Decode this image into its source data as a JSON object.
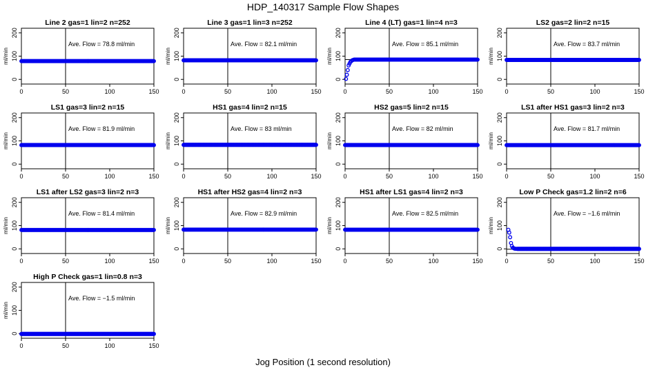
{
  "title": "HDP_140317  Sample Flow Shapes",
  "xlabel": "Jog Position (1 second resolution)",
  "colors": {
    "points": "#0000ee",
    "axis": "#000000"
  },
  "chart_data": [
    {
      "type": "scatter",
      "title": "Line 2 gas=1 lin=2 n=252",
      "ylabel": "ml/min",
      "annotation": "Ave. Flow = 78.8  ml/min",
      "xlim": [
        0,
        150
      ],
      "ylim": [
        -20,
        220
      ],
      "xticks": [
        "0",
        "50",
        "100",
        "150"
      ],
      "yticks": [
        "0",
        "100",
        "200"
      ],
      "x": [
        0,
        150
      ],
      "y": [
        78.8,
        78.8
      ],
      "hline": 78.8,
      "vline": 50
    },
    {
      "type": "scatter",
      "title": "Line 3 gas=1 lin=3 n=252",
      "ylabel": "ml/min",
      "annotation": "Ave. Flow = 82.1  ml/min",
      "xlim": [
        0,
        150
      ],
      "ylim": [
        -20,
        220
      ],
      "xticks": [
        "0",
        "50",
        "100",
        "150"
      ],
      "yticks": [
        "0",
        "100",
        "200"
      ],
      "x": [
        0,
        150
      ],
      "y": [
        82.1,
        82.1
      ],
      "hline": 82.1,
      "vline": 50
    },
    {
      "type": "scatter",
      "title": "Line 4 (LT) gas=1 lin=4 n=3",
      "ylabel": "ml/min",
      "annotation": "Ave. Flow = 85.1  ml/min",
      "xlim": [
        0,
        150
      ],
      "ylim": [
        -20,
        220
      ],
      "xticks": [
        "0",
        "50",
        "100",
        "150"
      ],
      "yticks": [
        "0",
        "100",
        "200"
      ],
      "x": [
        1,
        2,
        3,
        4,
        6,
        8,
        10,
        150
      ],
      "y": [
        2,
        20,
        40,
        60,
        75,
        82,
        85,
        85
      ],
      "hline": 85.1,
      "vline": 50
    },
    {
      "type": "scatter",
      "title": "LS2 gas=2 lin=2 n=15",
      "ylabel": "ml/min",
      "annotation": "Ave. Flow = 83.7  ml/min",
      "xlim": [
        0,
        150
      ],
      "ylim": [
        -20,
        220
      ],
      "xticks": [
        "0",
        "50",
        "100",
        "150"
      ],
      "yticks": [
        "0",
        "100",
        "200"
      ],
      "x": [
        0,
        150
      ],
      "y": [
        83.7,
        83.7
      ],
      "hline": 83.7,
      "vline": 50
    },
    {
      "type": "scatter",
      "title": "LS1 gas=3 lin=2 n=15",
      "ylabel": "ml/min",
      "annotation": "Ave. Flow = 81.9  ml/min",
      "xlim": [
        0,
        150
      ],
      "ylim": [
        -20,
        220
      ],
      "xticks": [
        "0",
        "50",
        "100",
        "150"
      ],
      "yticks": [
        "0",
        "100",
        "200"
      ],
      "x": [
        0,
        150
      ],
      "y": [
        81.9,
        81.9
      ],
      "hline": 81.9,
      "vline": 50
    },
    {
      "type": "scatter",
      "title": "HS1 gas=4 lin=2 n=15",
      "ylabel": "ml/min",
      "annotation": "Ave. Flow = 83  ml/min",
      "xlim": [
        0,
        150
      ],
      "ylim": [
        -20,
        220
      ],
      "xticks": [
        "0",
        "50",
        "100",
        "150"
      ],
      "yticks": [
        "0",
        "100",
        "200"
      ],
      "x": [
        0,
        150
      ],
      "y": [
        83,
        83
      ],
      "hline": 83,
      "vline": 50
    },
    {
      "type": "scatter",
      "title": "HS2 gas=5 lin=2 n=15",
      "ylabel": "ml/min",
      "annotation": "Ave. Flow = 82  ml/min",
      "xlim": [
        0,
        150
      ],
      "ylim": [
        -20,
        220
      ],
      "xticks": [
        "0",
        "50",
        "100",
        "150"
      ],
      "yticks": [
        "0",
        "100",
        "200"
      ],
      "x": [
        0,
        150
      ],
      "y": [
        82,
        82
      ],
      "hline": 82,
      "vline": 50
    },
    {
      "type": "scatter",
      "title": "LS1 after HS1 gas=3 lin=2 n=3",
      "ylabel": "ml/min",
      "annotation": "Ave. Flow = 81.7  ml/min",
      "xlim": [
        0,
        150
      ],
      "ylim": [
        -20,
        220
      ],
      "xticks": [
        "0",
        "50",
        "100",
        "150"
      ],
      "yticks": [
        "0",
        "100",
        "200"
      ],
      "x": [
        0,
        150
      ],
      "y": [
        81.7,
        81.7
      ],
      "hline": 81.7,
      "vline": 50
    },
    {
      "type": "scatter",
      "title": "LS1 after LS2 gas=3 lin=2 n=3",
      "ylabel": "ml/min",
      "annotation": "Ave. Flow = 81.4  ml/min",
      "xlim": [
        0,
        150
      ],
      "ylim": [
        -20,
        220
      ],
      "xticks": [
        "0",
        "50",
        "100",
        "150"
      ],
      "yticks": [
        "0",
        "100",
        "200"
      ],
      "x": [
        0,
        150
      ],
      "y": [
        81.4,
        81.4
      ],
      "hline": 81.4,
      "vline": 50
    },
    {
      "type": "scatter",
      "title": "HS1 after HS2 gas=4 lin=2 n=3",
      "ylabel": "ml/min",
      "annotation": "Ave. Flow = 82.9  ml/min",
      "xlim": [
        0,
        150
      ],
      "ylim": [
        -20,
        220
      ],
      "xticks": [
        "0",
        "50",
        "100",
        "150"
      ],
      "yticks": [
        "0",
        "100",
        "200"
      ],
      "x": [
        0,
        150
      ],
      "y": [
        82.9,
        82.9
      ],
      "hline": 82.9,
      "vline": 50
    },
    {
      "type": "scatter",
      "title": "HS1 after LS1 gas=4 lin=2 n=3",
      "ylabel": "ml/min",
      "annotation": "Ave. Flow = 82.5  ml/min",
      "xlim": [
        0,
        150
      ],
      "ylim": [
        -20,
        220
      ],
      "xticks": [
        "0",
        "50",
        "100",
        "150"
      ],
      "yticks": [
        "0",
        "100",
        "200"
      ],
      "x": [
        0,
        150
      ],
      "y": [
        82.5,
        82.5
      ],
      "hline": 82.5,
      "vline": 50
    },
    {
      "type": "scatter",
      "title": "Low P Check gas=1.2 lin=2 n=6",
      "ylabel": "ml/min",
      "annotation": "Ave. Flow = −1.6  ml/min",
      "xlim": [
        0,
        150
      ],
      "ylim": [
        -20,
        220
      ],
      "xticks": [
        "0",
        "50",
        "100",
        "150"
      ],
      "yticks": [
        "0",
        "100",
        "200"
      ],
      "x": [
        2,
        3,
        4,
        5,
        6,
        7,
        9,
        12,
        150
      ],
      "y": [
        82,
        70,
        50,
        25,
        12,
        5,
        1,
        0,
        0
      ],
      "hline": -1.6,
      "vline": 50
    },
    {
      "type": "scatter",
      "title": "High P Check gas=1 lin=0.8 n=3",
      "ylabel": "ml/min",
      "annotation": "Ave. Flow = −1.5  ml/min",
      "xlim": [
        0,
        150
      ],
      "ylim": [
        -20,
        220
      ],
      "xticks": [
        "0",
        "50",
        "100",
        "150"
      ],
      "yticks": [
        "0",
        "100",
        "200"
      ],
      "x": [
        0,
        150
      ],
      "y": [
        -1.5,
        -1.5
      ],
      "hline": -1.5,
      "vline": 50
    }
  ]
}
